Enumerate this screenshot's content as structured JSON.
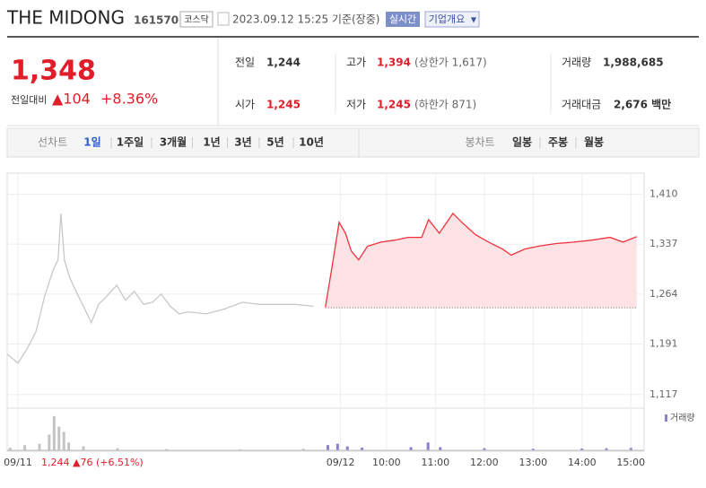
{
  "header": {
    "name": "THE MIDONG",
    "code": "161570",
    "market": "코스닥",
    "timestamp": "2023.09.12 15:25 기준(장중)",
    "buttons": [
      "실시간",
      "기업개요"
    ]
  },
  "quote": {
    "price": "1,348",
    "change_label": "전일대비",
    "change": "▲104",
    "change_pct": "+8.36%",
    "stats": [
      {
        "label": "전일",
        "value": "1,244"
      },
      {
        "label": "고가",
        "value": "1,394",
        "note": "(상한가 1,617)"
      },
      {
        "label": "거래량",
        "value": "1,988,685"
      },
      {
        "label": "시가",
        "value": "1,245"
      },
      {
        "label": "저가",
        "value": "1,245",
        "note": "(하한가 871)"
      },
      {
        "label": "거래대금",
        "value": "2,676 백만"
      }
    ]
  },
  "tabs": {
    "line_label": "선차트",
    "line_periods": [
      "1일",
      "1주일",
      "3개월",
      "1년",
      "3년",
      "5년",
      "10년"
    ],
    "candle_label": "봉차트",
    "candle_periods": [
      "일봉",
      "주봉",
      "월봉"
    ]
  },
  "chart_data": {
    "type": "line",
    "series": [
      {
        "color": "#c8c8c8",
        "x": [
          2.24,
          2.46,
          2.64,
          2.83,
          3.01,
          3.19,
          3.28,
          3.34,
          3.41,
          3.52,
          3.65,
          3.83,
          3.96,
          4.11,
          4.29,
          4.48,
          4.66,
          4.84,
          5.03,
          5.21,
          5.39,
          5.58,
          5.76,
          5.94,
          6.31,
          6.68,
          7.05,
          7.41,
          7.78,
          8.15,
          8.51
        ],
        "values": [
          1176,
          1163,
          1183,
          1209,
          1262,
          1301,
          1314,
          1382,
          1314,
          1288,
          1268,
          1242,
          1222,
          1249,
          1262,
          1277,
          1255,
          1268,
          1249,
          1252,
          1264,
          1246,
          1235,
          1238,
          1235,
          1242,
          1252,
          1249,
          1249,
          1249,
          1246
        ]
      },
      {
        "color": "#f0313c",
        "fill": "#fde3e5",
        "x": [
          8.75,
          8.88,
          9.03,
          9.16,
          9.28,
          9.43,
          9.61,
          9.89,
          10.17,
          10.44,
          10.72,
          10.86,
          11.08,
          11.36,
          11.54,
          11.82,
          12.09,
          12.37,
          12.55,
          12.83,
          13.1,
          13.47,
          13.83,
          14.2,
          14.57,
          14.84,
          15.12
        ],
        "values": [
          1245,
          1301,
          1369,
          1353,
          1327,
          1314,
          1334,
          1340,
          1343,
          1347,
          1347,
          1373,
          1353,
          1382,
          1369,
          1351,
          1340,
          1330,
          1321,
          1330,
          1334,
          1338,
          1340,
          1343,
          1347,
          1340,
          1348
        ]
      }
    ],
    "base": 1244,
    "xlim": [
      2.24,
      15.27
    ],
    "xticks": [
      {
        "value": 2.46,
        "label": "09/11"
      },
      {
        "value": 9.06,
        "label": "09/12"
      },
      {
        "value": 10,
        "label": "10:00"
      },
      {
        "value": 11,
        "label": "11:00"
      },
      {
        "value": 12,
        "label": "12:00"
      },
      {
        "value": 13,
        "label": "13:00"
      },
      {
        "value": 14,
        "label": "14:00"
      },
      {
        "value": 15,
        "label": "15:00"
      }
    ],
    "ylim": [
      1101,
      1441
    ],
    "yticks": [
      {
        "value": 1117,
        "label": "1,117"
      },
      {
        "value": 1191,
        "label": "1,191"
      },
      {
        "value": 1264,
        "label": "1,264"
      },
      {
        "value": 1337,
        "label": "1,337"
      },
      {
        "value": 1410,
        "label": "1,410"
      }
    ],
    "volume": {
      "label": "거래량",
      "ylim": [
        0,
        150000
      ],
      "series": [
        {
          "color": "#c4c4c4",
          "x": [
            2.3,
            2.6,
            2.9,
            3.1,
            3.2,
            3.3,
            3.4,
            3.5,
            3.8,
            4.5,
            5.5,
            7,
            8.3
          ],
          "values": [
            10000,
            20000,
            25000,
            60000,
            130000,
            90000,
            70000,
            30000,
            15000,
            8000,
            5000,
            4000,
            6000
          ]
        },
        {
          "color": "#8b7fd0",
          "x": [
            8.8,
            9.0,
            9.2,
            9.5,
            10.5,
            10.85,
            11.1,
            12,
            13,
            14,
            14.5,
            15
          ],
          "values": [
            20000,
            25000,
            15000,
            10000,
            12000,
            30000,
            12000,
            8000,
            6000,
            7000,
            8000,
            9000
          ]
        }
      ]
    },
    "footer": "1,244 ▲76 (+6.51%)"
  }
}
